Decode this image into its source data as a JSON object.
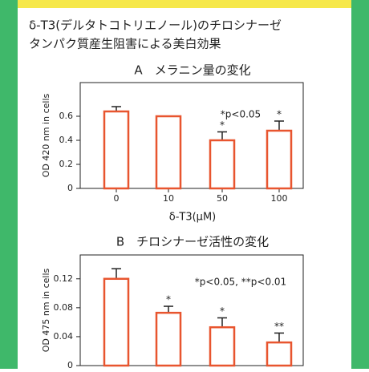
{
  "header": {
    "title": [
      "δ-T3(デルタトコトリエノール)のチロシナーゼ",
      "タンパク質産生阻害による美白効果"
    ]
  },
  "chart_data": [
    {
      "type": "bar",
      "title": "A　メラニン量の変化",
      "x_label": "δ-T3(μM)",
      "y_label": "OD 420 nm in cells",
      "categories": [
        "0",
        "10",
        "50",
        "100"
      ],
      "values": [
        0.64,
        0.6,
        0.4,
        0.48
      ],
      "errors": [
        0.04,
        0,
        0.07,
        0.08
      ],
      "markers": [
        null,
        null,
        "*",
        "*"
      ],
      "annotation": "*p<0.05",
      "color": "#e8552f",
      "ylim": [
        0,
        0.88
      ],
      "yticks": [
        0,
        0.2,
        0.4,
        0.6
      ]
    },
    {
      "type": "bar",
      "title": "B　チロシナーゼ活性の変化",
      "y_label": "OD 475 nm in cells",
      "values": [
        0.12,
        0.073,
        0.053,
        0.032
      ],
      "errors": [
        0.014,
        0.009,
        0.013,
        0.013
      ],
      "markers": [
        null,
        "*",
        "*",
        "**"
      ],
      "annotation": "*p<0.05, **p<0.01",
      "color": "#e8552f",
      "ylim": [
        0,
        0.153
      ],
      "yticks": [
        0,
        0.04,
        0.08,
        0.12
      ]
    }
  ]
}
